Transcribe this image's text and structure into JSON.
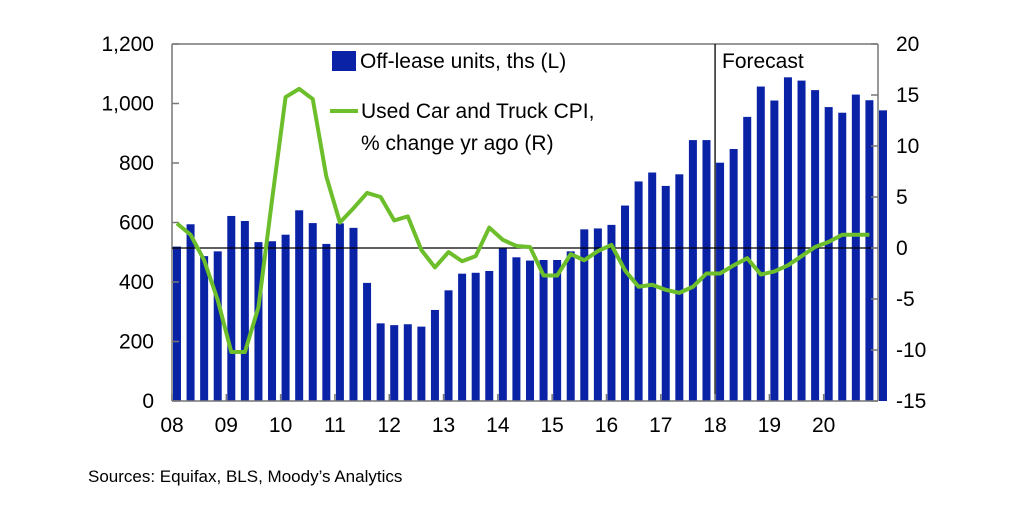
{
  "chart_data": {
    "type": "bar+line",
    "title": "",
    "xlabel": "",
    "ylabel_left": "",
    "ylabel_right": "",
    "x_tick_labels": [
      "08",
      "09",
      "10",
      "11",
      "12",
      "13",
      "14",
      "15",
      "16",
      "17",
      "18",
      "19",
      "20"
    ],
    "x_ticks": [
      2008,
      2009,
      2010,
      2011,
      2012,
      2013,
      2014,
      2015,
      2016,
      2017,
      2018,
      2019,
      2020
    ],
    "xlim": [
      2008,
      2021
    ],
    "y_left": {
      "lim": [
        0,
        1200
      ],
      "ticks": [
        0,
        200,
        400,
        600,
        800,
        1000,
        1200
      ],
      "tick_labels": [
        "0",
        "200",
        "400",
        "600",
        "800",
        "1,000",
        "1,200"
      ]
    },
    "y_right": {
      "lim": [
        -15,
        20
      ],
      "ticks": [
        -15,
        -10,
        -5,
        0,
        5,
        10,
        15,
        20
      ],
      "tick_labels": [
        "-15",
        "-10",
        "-5",
        "0",
        "5",
        "10",
        "15",
        "20"
      ]
    },
    "reference_line_right": 0,
    "forecast_start": 2018,
    "forecast_label": "Forecast",
    "legend_position": "top-center",
    "series": [
      {
        "name": "Off-lease units, ths (L)",
        "type": "bar",
        "axis": "left",
        "color": "#0A22A6",
        "x_start": 2008,
        "x_step": 0.25,
        "values": [
          519,
          594,
          487,
          503,
          622,
          605,
          534,
          537,
          559,
          641,
          598,
          528,
          597,
          582,
          397,
          261,
          255,
          258,
          250,
          306,
          372,
          428,
          431,
          437,
          515,
          483,
          472,
          474,
          474,
          503,
          577,
          580,
          592,
          657,
          738,
          768,
          723,
          762,
          877,
          877,
          801,
          847,
          955,
          1057,
          1010,
          1088,
          1077,
          1045,
          988,
          969,
          1030,
          1011,
          977
        ]
      },
      {
        "name": "Used Car and Truck CPI, % change yr ago (R)",
        "legend_lines": [
          "Used Car and Truck CPI,",
          "% change yr ago (R)"
        ],
        "type": "line",
        "axis": "right",
        "color": "#6DBE2B",
        "x_start": 2008,
        "x_step": 0.25,
        "values": [
          2.4,
          1.3,
          -1.2,
          -5.1,
          -10.2,
          -10.2,
          -5.8,
          4.7,
          14.8,
          15.6,
          14.6,
          7.0,
          2.5,
          3.9,
          5.4,
          5.0,
          2.7,
          3.1,
          -0.2,
          -1.9,
          -0.4,
          -1.3,
          -0.8,
          2.0,
          0.8,
          0.2,
          0.1,
          -2.7,
          -2.7,
          -0.6,
          -1.2,
          -0.3,
          0.3,
          -2.2,
          -3.8,
          -3.6,
          -4.1,
          -4.4,
          -3.8,
          -2.5,
          -2.5,
          -1.7,
          -1.0,
          -2.6,
          -2.3,
          -1.7,
          -0.8,
          0.1,
          0.6,
          1.3,
          1.3,
          1.3
        ]
      }
    ]
  },
  "source": "Sources: Equifax, BLS, Moody’s Analytics"
}
